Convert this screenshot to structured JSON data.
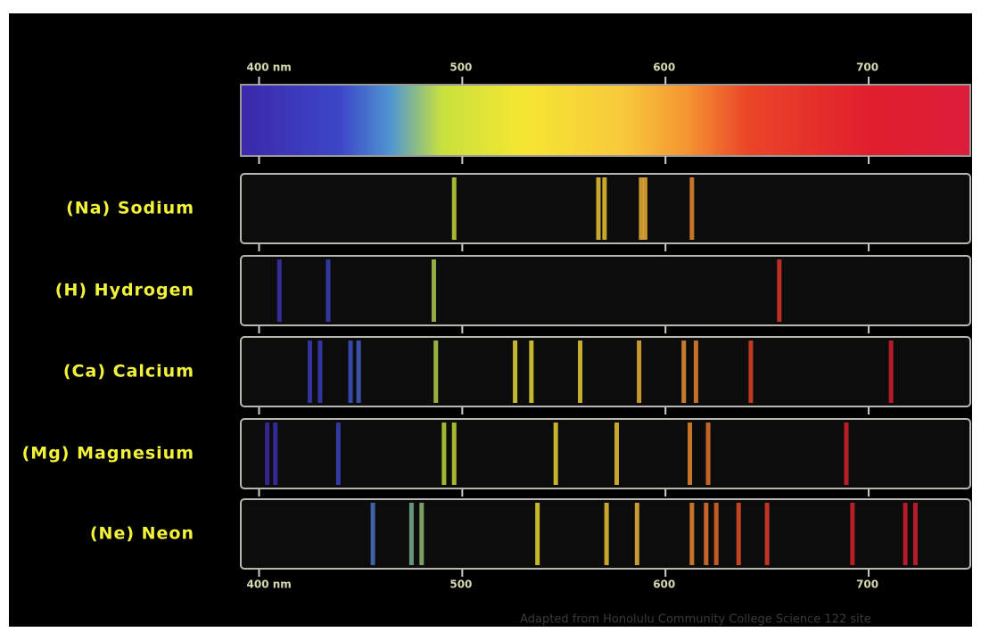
{
  "chart_data": {
    "type": "spectrum",
    "xlim": [
      391,
      750
    ],
    "xticks": [
      {
        "value": 400,
        "label": "400 nm"
      },
      500,
      600,
      700
    ],
    "series": [
      {
        "name": "(Na) Sodium",
        "values": [
          496,
          567,
          570,
          588,
          590,
          613
        ]
      },
      {
        "name": "(H) Hydrogen",
        "values": [
          410,
          434,
          486,
          656
        ]
      },
      {
        "name": "(Ca) Calcium",
        "values": [
          425,
          430,
          445,
          449,
          487,
          526,
          534,
          558,
          587,
          609,
          615,
          642,
          711
        ]
      },
      {
        "name": "(Mg) Magnesium",
        "values": [
          404,
          408,
          439,
          491,
          496,
          546,
          576,
          612,
          621,
          689
        ]
      },
      {
        "name": "(Ne) Neon",
        "values": [
          456,
          475,
          480,
          537,
          571,
          586,
          613,
          620,
          625,
          636,
          650,
          692,
          718,
          723
        ]
      }
    ],
    "credit": "Adapted from Honolulu Community College Science 122 site"
  }
}
